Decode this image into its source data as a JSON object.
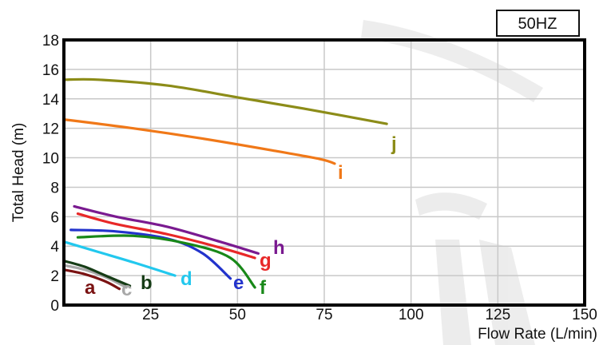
{
  "frequency_badge": "50HZ",
  "chart_data": {
    "type": "line",
    "xlabel": "Flow Rate (L/min)",
    "ylabel": "Total Head (m)",
    "xlim": [
      0,
      150
    ],
    "ylim": [
      0,
      18
    ],
    "xticks": [
      "25",
      "50",
      "75",
      "100",
      "125",
      "150"
    ],
    "yticks": [
      "0",
      "2",
      "4",
      "6",
      "8",
      "10",
      "12",
      "14",
      "16",
      "18"
    ],
    "grid": true,
    "series": [
      {
        "name": "a",
        "color": "#7a1212",
        "x": [
          0,
          6,
          12,
          16
        ],
        "y": [
          2.4,
          2.1,
          1.6,
          1.1
        ]
      },
      {
        "name": "c",
        "color": "#a8a8a8",
        "x": [
          0,
          6,
          12,
          18
        ],
        "y": [
          2.7,
          2.4,
          1.9,
          1.2
        ]
      },
      {
        "name": "b",
        "color": "#163c16",
        "x": [
          0,
          6,
          12,
          19
        ],
        "y": [
          3.0,
          2.6,
          2.0,
          1.3
        ]
      },
      {
        "name": "d",
        "color": "#22c8ee",
        "x": [
          0,
          10,
          20,
          32
        ],
        "y": [
          4.3,
          3.6,
          2.9,
          2.0
        ]
      },
      {
        "name": "e",
        "color": "#2233cc",
        "x": [
          2,
          15,
          30,
          40,
          48
        ],
        "y": [
          5.1,
          5.0,
          4.5,
          3.5,
          1.8
        ]
      },
      {
        "name": "f",
        "color": "#188818",
        "x": [
          4,
          20,
          35,
          48,
          55
        ],
        "y": [
          4.6,
          4.7,
          4.2,
          3.2,
          1.2
        ]
      },
      {
        "name": "g",
        "color": "#e82828",
        "x": [
          4,
          15,
          30,
          45,
          55
        ],
        "y": [
          6.2,
          5.5,
          4.8,
          3.9,
          3.2
        ]
      },
      {
        "name": "h",
        "color": "#7a1a90",
        "x": [
          3,
          15,
          30,
          45,
          56
        ],
        "y": [
          6.7,
          6.0,
          5.3,
          4.3,
          3.5
        ]
      },
      {
        "name": "i",
        "color": "#f07818",
        "x": [
          0,
          20,
          40,
          60,
          74,
          78
        ],
        "y": [
          12.6,
          12.0,
          11.3,
          10.5,
          9.9,
          9.6
        ]
      },
      {
        "name": "j",
        "color": "#8c8c18",
        "x": [
          0,
          10,
          30,
          50,
          70,
          93
        ],
        "y": [
          15.3,
          15.3,
          14.9,
          14.1,
          13.3,
          12.3
        ]
      }
    ]
  }
}
